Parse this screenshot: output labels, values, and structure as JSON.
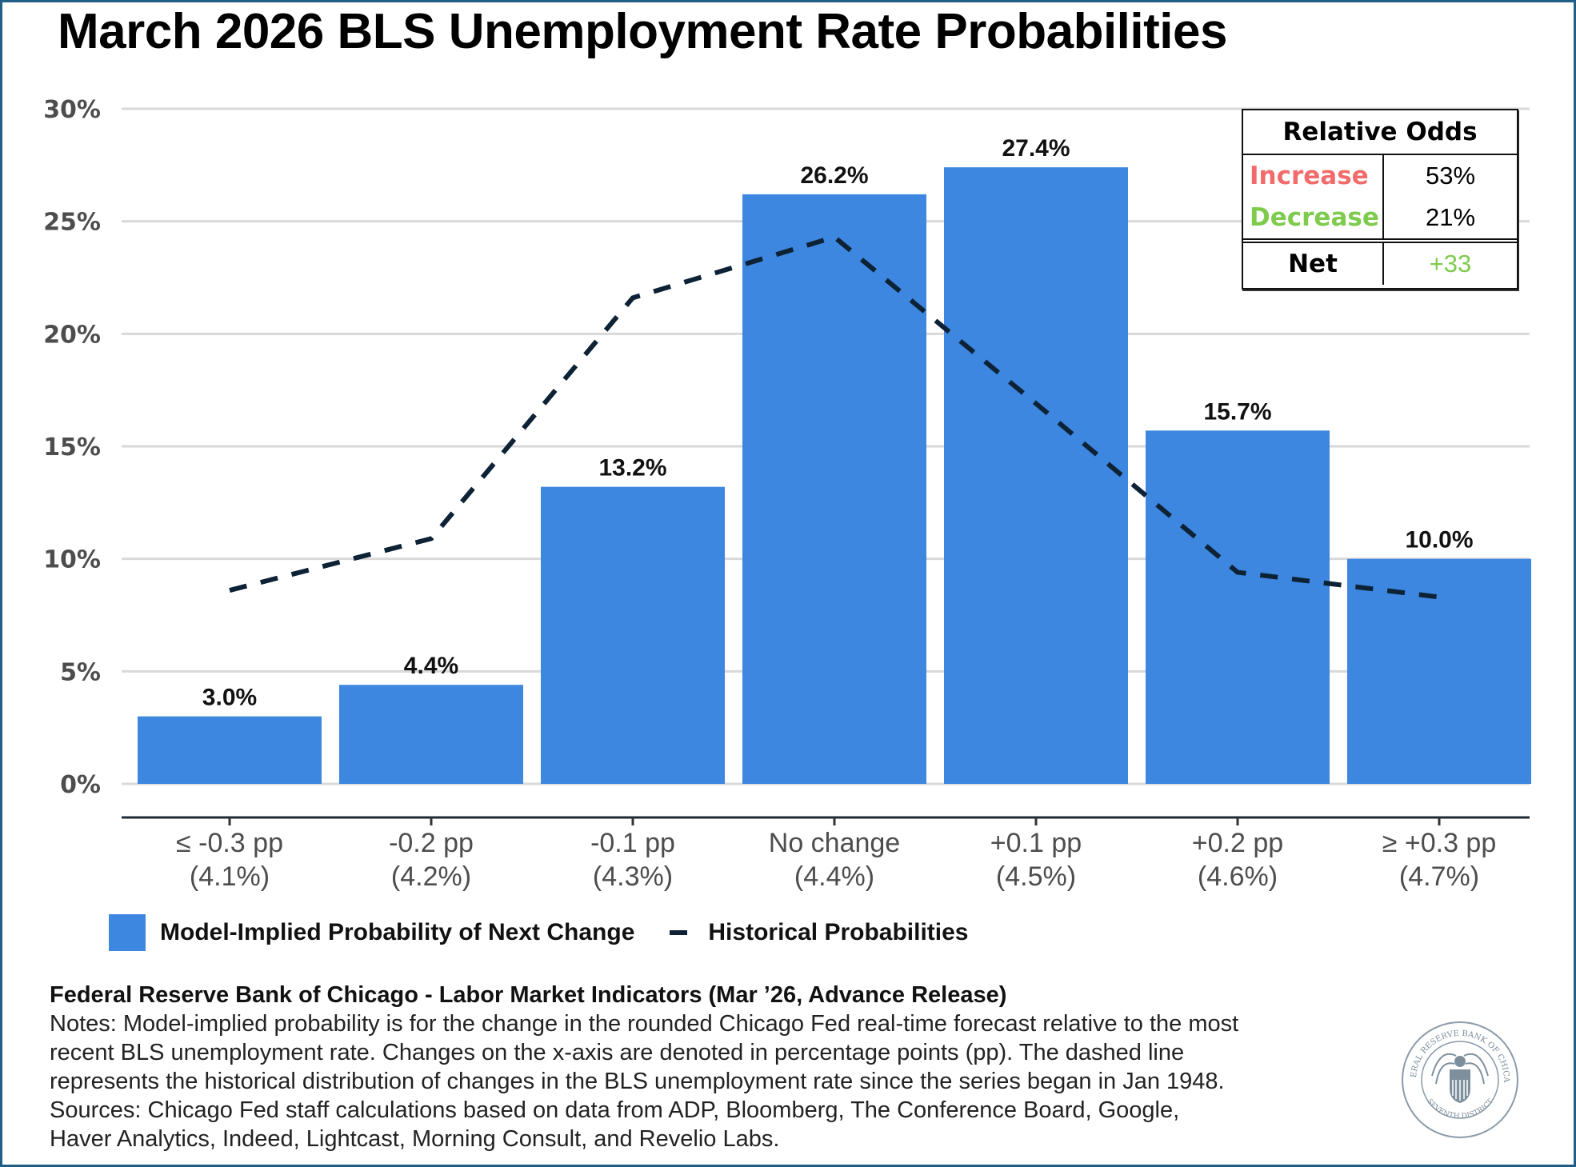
{
  "title": "March 2026 BLS Unemployment Rate Probabilities",
  "chart_data": {
    "type": "bar",
    "title": "March 2026 BLS Unemployment Rate Probabilities",
    "xlabel": "",
    "ylabel": "",
    "ylim": [
      0,
      30
    ],
    "yticks": [
      0,
      5,
      10,
      15,
      20,
      25,
      30
    ],
    "ytick_labels": [
      "0%",
      "5%",
      "10%",
      "15%",
      "20%",
      "25%",
      "30%"
    ],
    "grid": true,
    "categories": [
      {
        "line1": "≤ -0.3 pp",
        "line2": "(4.1%)"
      },
      {
        "line1": "-0.2 pp",
        "line2": "(4.2%)"
      },
      {
        "line1": "-0.1 pp",
        "line2": "(4.3%)"
      },
      {
        "line1": "No change",
        "line2": "(4.4%)"
      },
      {
        "line1": "+0.1 pp",
        "line2": "(4.5%)"
      },
      {
        "line1": "+0.2 pp",
        "line2": "(4.6%)"
      },
      {
        "line1": "≥ +0.3 pp",
        "line2": "(4.7%)"
      }
    ],
    "series": [
      {
        "name": "Model-Implied Probability of Next Change",
        "type": "bar",
        "color": "#3d87e0",
        "values": [
          3.0,
          4.4,
          13.2,
          26.2,
          27.4,
          15.7,
          10.0
        ],
        "labels": [
          "3.0%",
          "4.4%",
          "13.2%",
          "26.2%",
          "27.4%",
          "15.7%",
          "10.0%"
        ]
      },
      {
        "name": "Historical Probabilities",
        "type": "line",
        "style": "dashed",
        "color": "#0d2235",
        "values": [
          8.6,
          10.9,
          21.6,
          24.3,
          16.9,
          9.4,
          8.3
        ]
      }
    ],
    "legend": "bottom-left"
  },
  "odds_table": {
    "header": "Relative Odds",
    "rows": [
      {
        "label": "Increase",
        "value": "53%",
        "color": "#f26b6b"
      },
      {
        "label": "Decrease",
        "value": "21%",
        "color": "#7ecb4d"
      }
    ],
    "net": {
      "label": "Net",
      "value": "+33",
      "color": "#7ecb4d"
    }
  },
  "legend": {
    "bar_label": "Model-Implied Probability of Next Change",
    "line_label": "Historical Probabilities"
  },
  "footer": {
    "source_line": "Federal Reserve Bank of Chicago - Labor Market Indicators (Mar ’26, Advance Release)",
    "notes": [
      "Notes: Model-implied probability is for the change in the rounded Chicago Fed real-time forecast relative to the most",
      "recent BLS unemployment rate. Changes on the x-axis are denoted in percentage points (pp). The dashed line",
      "represents the historical distribution of changes in the BLS unemployment rate since the series began in Jan 1948.",
      "Sources: Chicago Fed staff calculations based on data from ADP, Bloomberg, The Conference Board, Google,",
      "Haver Analytics, Indeed, Lightcast, Morning Consult, and Revelio Labs."
    ]
  },
  "seal": {
    "top_text": "FEDERAL RESERVE BANK OF CHICAGO",
    "bottom_text": "SEVENTH DISTRICT"
  }
}
